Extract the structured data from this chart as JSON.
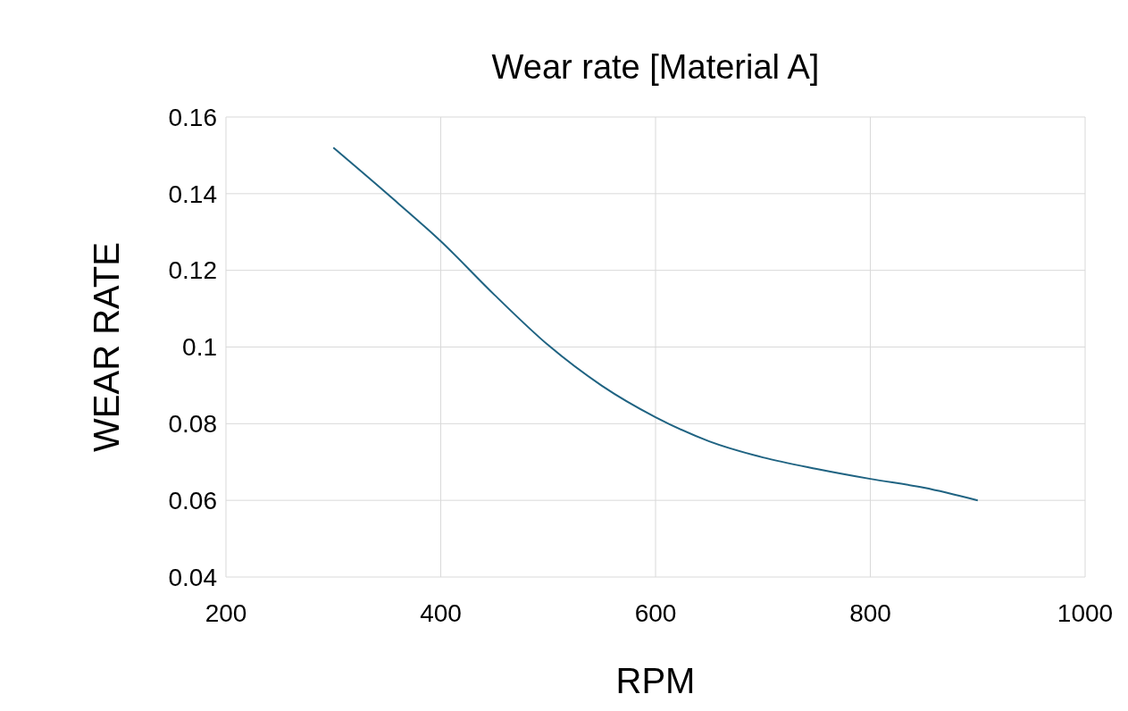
{
  "chart_data": {
    "type": "line",
    "title": "Wear rate [Material A]",
    "xlabel": "RPM",
    "ylabel": "WEAR RATE",
    "x": [
      300,
      350,
      400,
      450,
      500,
      550,
      600,
      650,
      700,
      750,
      800,
      850,
      900
    ],
    "series": [
      {
        "color": "#1f6382",
        "values": [
          0.152,
          0.14,
          0.1276,
          0.1136,
          0.1005,
          0.0899,
          0.0817,
          0.0754,
          0.0712,
          0.0682,
          0.0656,
          0.0633,
          0.06
        ]
      }
    ],
    "xlim": [
      200,
      1000
    ],
    "xticks": [
      200,
      400,
      600,
      800,
      1000
    ],
    "ylim": [
      0.04,
      0.16
    ],
    "yticks": [
      {
        "value": 0.04,
        "label": "0.04"
      },
      {
        "value": 0.06,
        "label": "0.06"
      },
      {
        "value": 0.08,
        "label": "0.08"
      },
      {
        "value": 0.1,
        "label": "0.1"
      },
      {
        "value": 0.12,
        "label": "0.12"
      },
      {
        "value": 0.14,
        "label": "0.14"
      },
      {
        "value": 0.16,
        "label": "0.16"
      }
    ],
    "grid": true,
    "marker": "none",
    "line_style": "solid"
  }
}
